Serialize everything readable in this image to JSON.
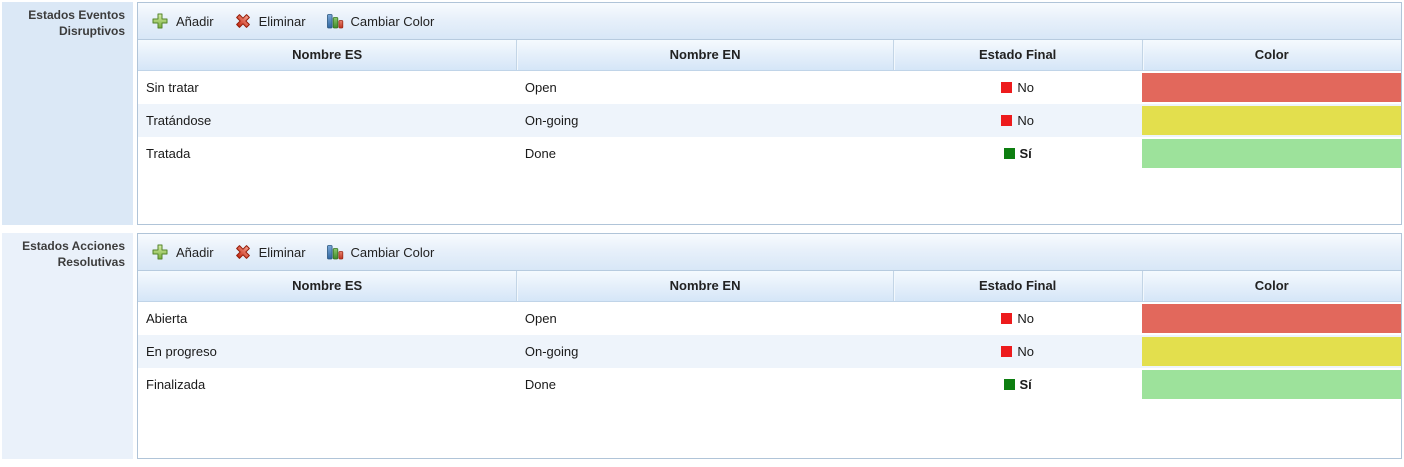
{
  "panels": [
    {
      "label": "Estados Eventos Disruptivos",
      "toolbar": {
        "add_label": "Añadir",
        "delete_label": "Eliminar",
        "change_color_label": "Cambiar Color"
      },
      "columns": {
        "nombre_es": "Nombre ES",
        "nombre_en": "Nombre EN",
        "estado_final": "Estado Final",
        "color": "Color"
      },
      "rows": [
        {
          "nombre_es": "Sin tratar",
          "nombre_en": "Open",
          "estado_final": "No",
          "is_final": false,
          "color": "#e2685c"
        },
        {
          "nombre_es": "Tratándose",
          "nombre_en": "On-going",
          "estado_final": "No",
          "is_final": false,
          "color": "#e3df4d"
        },
        {
          "nombre_es": "Tratada",
          "nombre_en": "Done",
          "estado_final": "Sí",
          "is_final": true,
          "color": "#9de29b"
        }
      ]
    },
    {
      "label": "Estados Acciones Resolutivas",
      "toolbar": {
        "add_label": "Añadir",
        "delete_label": "Eliminar",
        "change_color_label": "Cambiar Color"
      },
      "columns": {
        "nombre_es": "Nombre ES",
        "nombre_en": "Nombre EN",
        "estado_final": "Estado Final",
        "color": "Color"
      },
      "rows": [
        {
          "nombre_es": "Abierta",
          "nombre_en": "Open",
          "estado_final": "No",
          "is_final": false,
          "color": "#e2685c"
        },
        {
          "nombre_es": "En progreso",
          "nombre_en": "On-going",
          "estado_final": "No",
          "is_final": false,
          "color": "#e3df4d"
        },
        {
          "nombre_es": "Finalizada",
          "nombre_en": "Done",
          "estado_final": "Sí",
          "is_final": true,
          "color": "#9de29b"
        }
      ]
    }
  ],
  "estado_icons": {
    "no_square_color": "#ed1b1d",
    "si_square_color": "#0d7e10"
  },
  "theme": {
    "label_bg_1": "#dbe8f6",
    "label_bg_2": "#eaf1fa",
    "row_alt_bg": "#eef4fb",
    "border": "#b0c4d8"
  }
}
